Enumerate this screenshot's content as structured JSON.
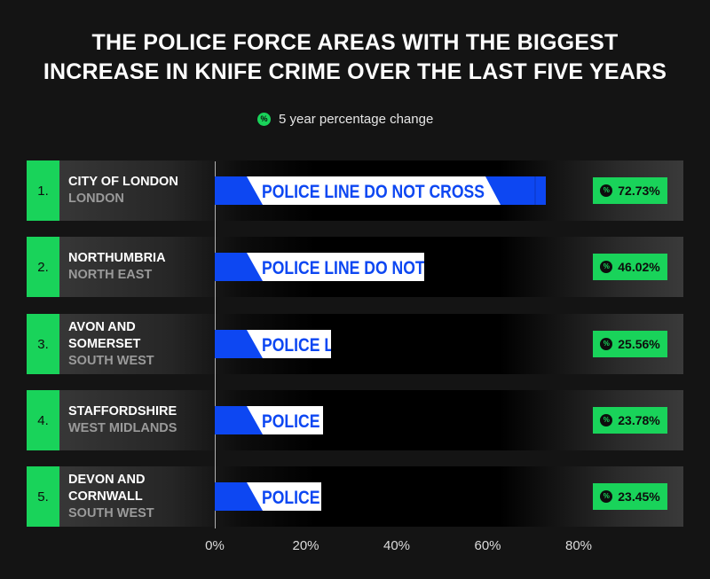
{
  "title_line1": "THE POLICE FORCE AREAS WITH THE BIGGEST",
  "title_line2": "INCREASE IN KNIFE CRIME OVER THE LAST FIVE YEARS",
  "legend": {
    "label": "5 year percentage change",
    "icon": "%"
  },
  "tape_text": "POLICE LINE DO NOT CROSS",
  "colors": {
    "accent": "#19d35a",
    "tape_blue": "#0d47f2",
    "background": "#141414"
  },
  "chart_data": {
    "type": "bar",
    "orientation": "horizontal",
    "title": "THE POLICE FORCE AREAS WITH THE BIGGEST INCREASE IN KNIFE CRIME OVER THE LAST FIVE YEARS",
    "series": [
      {
        "name": "5 year percentage change",
        "values": [
          72.73,
          46.02,
          25.56,
          23.78,
          23.45
        ]
      }
    ],
    "categories": [
      "CITY OF LONDON",
      "NORTHUMBRIA",
      "AVON AND SOMERSET",
      "STAFFORDSHIRE",
      "DEVON AND CORNWALL"
    ],
    "regions": [
      "LONDON",
      "NORTH EAST",
      "SOUTH WEST",
      "WEST MIDLANDS",
      "SOUTH WEST"
    ],
    "ranks": [
      "1.",
      "2.",
      "3.",
      "4.",
      "5."
    ],
    "value_labels": [
      "72.73%",
      "46.02%",
      "25.56%",
      "23.78%",
      "23.45%"
    ],
    "xlim": [
      0,
      80
    ],
    "x_ticks": [
      "0%",
      "20%",
      "40%",
      "60%",
      "80%"
    ],
    "legend_position": "top-center",
    "grid": false
  }
}
